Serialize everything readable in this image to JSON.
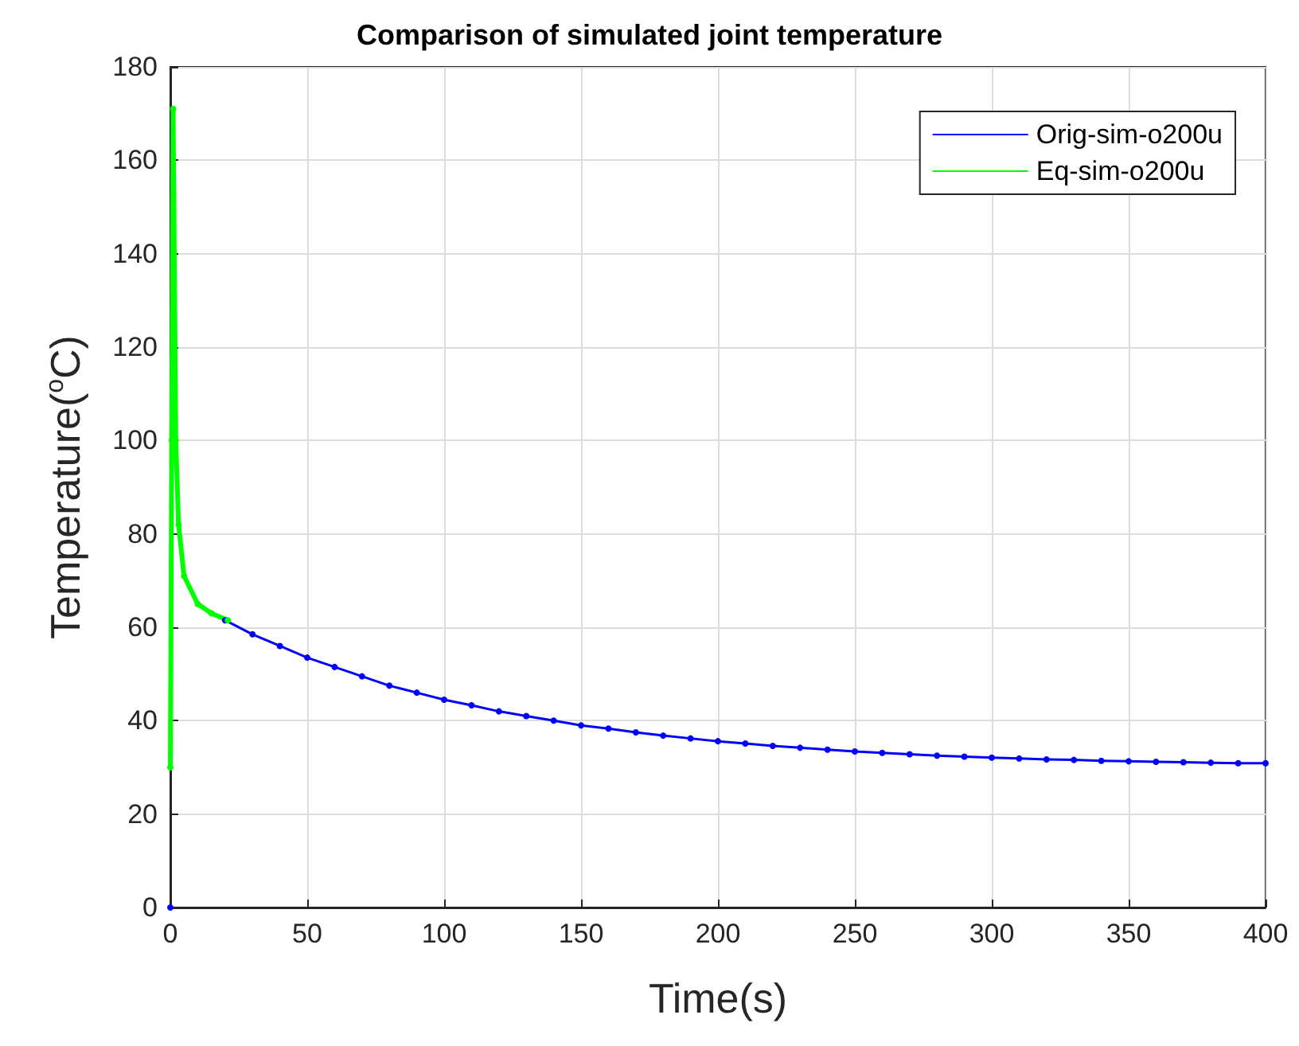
{
  "chart_data": {
    "type": "line",
    "title": "Comparison of simulated joint temperature",
    "xlabel": "Time(s)",
    "ylabel": "Temperature($^{o}$C)",
    "xlim": [
      0,
      400
    ],
    "xticks": [
      0,
      50,
      100,
      150,
      200,
      250,
      300,
      350,
      400
    ],
    "ylim": [
      0,
      180
    ],
    "yticks": [
      0,
      20,
      40,
      60,
      80,
      100,
      120,
      140,
      160,
      180
    ],
    "grid": true,
    "legend": "top right",
    "marker": "circle",
    "line_style": "solid",
    "series": [
      {
        "name": "Orig-sim-o200u",
        "color": "#0000ff",
        "x": [
          0,
          0.5,
          1,
          2,
          3,
          5,
          10,
          20,
          30,
          40,
          50,
          60,
          70,
          80,
          90,
          100,
          110,
          120,
          130,
          140,
          150,
          160,
          170,
          180,
          190,
          200,
          210,
          220,
          230,
          240,
          250,
          260,
          270,
          280,
          290,
          300,
          310,
          320,
          330,
          340,
          350,
          360,
          370,
          380,
          390,
          400
        ],
        "values": [
          0,
          null,
          null,
          null,
          null,
          null,
          null,
          61.5,
          58.5,
          56,
          53.5,
          51.5,
          49.5,
          47.5,
          46,
          44.5,
          43.3,
          42,
          41,
          40,
          39,
          38.3,
          37.5,
          36.8,
          36.2,
          35.6,
          35.1,
          34.6,
          34.2,
          33.8,
          33.4,
          33.1,
          32.8,
          32.5,
          32.3,
          32.1,
          31.9,
          31.7,
          31.6,
          31.4,
          31.3,
          31.2,
          31.1,
          31,
          30.9,
          30.9
        ]
      },
      {
        "name": "Eq-sim-o200u",
        "color": "#00ff00",
        "x": [
          0,
          0.5,
          1,
          2,
          3,
          5,
          10,
          15,
          21
        ],
        "values": [
          30,
          100,
          171,
          100,
          82,
          71,
          65,
          63,
          61.5
        ]
      }
    ]
  }
}
